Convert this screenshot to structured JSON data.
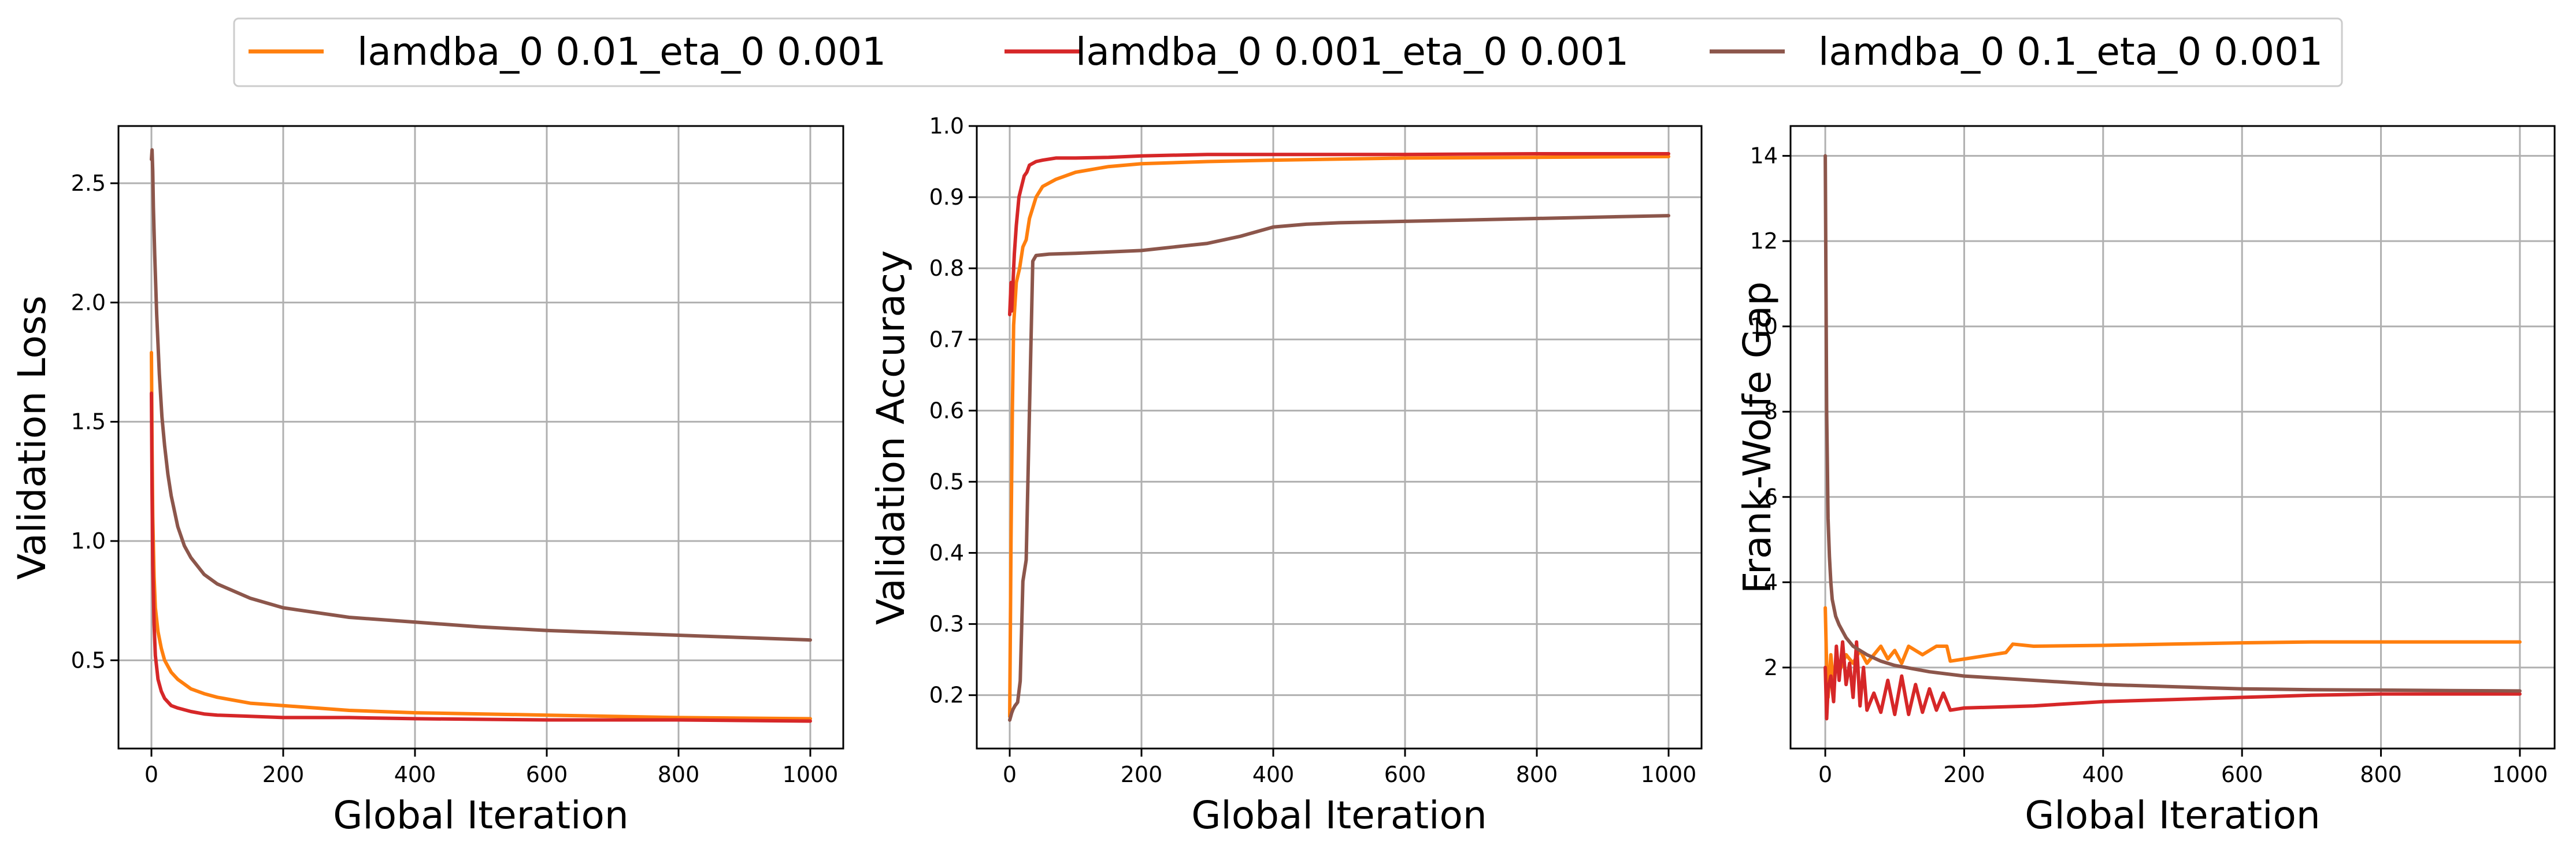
{
  "chart_data": [
    {
      "type": "line",
      "title": "",
      "xlabel": "Global Iteration",
      "ylabel": "Validation Loss",
      "xlim": [
        -50,
        1050
      ],
      "ylim": [
        0.13,
        2.74
      ],
      "xticks": [
        0,
        200,
        400,
        600,
        800,
        1000
      ],
      "yticks": [
        0.5,
        1.0,
        1.5,
        2.0,
        2.5
      ],
      "ytick_labels": [
        "0.5",
        "1.0",
        "1.5",
        "2.0",
        "2.5"
      ],
      "grid": true,
      "series": [
        {
          "name": "lamdba_0 0.01_eta_0 0.001",
          "color": "#ff7f0e",
          "x": [
            0,
            1,
            2,
            4,
            6,
            10,
            15,
            20,
            30,
            40,
            60,
            80,
            100,
            150,
            200,
            300,
            400,
            600,
            800,
            1000
          ],
          "y": [
            1.79,
            1.4,
            1.1,
            0.85,
            0.72,
            0.62,
            0.55,
            0.5,
            0.45,
            0.42,
            0.38,
            0.36,
            0.345,
            0.32,
            0.31,
            0.29,
            0.28,
            0.27,
            0.26,
            0.255
          ]
        },
        {
          "name": "lamdba_0 0.001_eta_0 0.001",
          "color": "#d62728",
          "x": [
            0,
            1,
            2,
            4,
            6,
            10,
            15,
            20,
            30,
            40,
            60,
            80,
            100,
            150,
            200,
            300,
            400,
            600,
            800,
            1000
          ],
          "y": [
            1.62,
            1.2,
            0.9,
            0.65,
            0.52,
            0.42,
            0.37,
            0.34,
            0.31,
            0.3,
            0.285,
            0.275,
            0.27,
            0.265,
            0.26,
            0.26,
            0.255,
            0.25,
            0.25,
            0.245
          ]
        },
        {
          "name": "lamdba_0 0.1_eta_0 0.001",
          "color": "#8c564b",
          "x": [
            0,
            1,
            2,
            3,
            5,
            8,
            12,
            16,
            20,
            25,
            30,
            40,
            50,
            60,
            80,
            100,
            150,
            200,
            300,
            400,
            500,
            600,
            700,
            800,
            900,
            1000
          ],
          "y": [
            2.6,
            2.64,
            2.55,
            2.4,
            2.2,
            1.95,
            1.7,
            1.52,
            1.4,
            1.28,
            1.19,
            1.06,
            0.98,
            0.93,
            0.86,
            0.82,
            0.76,
            0.72,
            0.68,
            0.66,
            0.64,
            0.625,
            0.615,
            0.605,
            0.595,
            0.585
          ]
        }
      ]
    },
    {
      "type": "line",
      "title": "",
      "xlabel": "Global Iteration",
      "ylabel": "Validation Accuracy",
      "xlim": [
        -50,
        1050
      ],
      "ylim": [
        0.125,
        1.0
      ],
      "xticks": [
        0,
        200,
        400,
        600,
        800,
        1000
      ],
      "yticks": [
        0.2,
        0.3,
        0.4,
        0.5,
        0.6,
        0.7,
        0.8,
        0.9,
        1.0
      ],
      "ytick_labels": [
        "0.2",
        "0.3",
        "0.4",
        "0.5",
        "0.6",
        "0.7",
        "0.8",
        "0.9",
        "1.0"
      ],
      "grid": true,
      "series": [
        {
          "name": "lamdba_0 0.01_eta_0 0.001",
          "color": "#ff7f0e",
          "x": [
            0,
            2,
            4,
            6,
            10,
            15,
            20,
            25,
            30,
            40,
            50,
            70,
            100,
            150,
            200,
            300,
            400,
            600,
            800,
            1000
          ],
          "y": [
            0.17,
            0.42,
            0.6,
            0.72,
            0.78,
            0.8,
            0.83,
            0.84,
            0.87,
            0.9,
            0.915,
            0.925,
            0.935,
            0.943,
            0.947,
            0.95,
            0.952,
            0.955,
            0.956,
            0.957
          ]
        },
        {
          "name": "lamdba_0 0.001_eta_0 0.001",
          "color": "#d62728",
          "x": [
            0,
            2,
            3,
            5,
            7,
            10,
            14,
            18,
            22,
            26,
            30,
            40,
            50,
            70,
            100,
            150,
            200,
            300,
            400,
            600,
            800,
            1000
          ],
          "y": [
            0.735,
            0.78,
            0.74,
            0.78,
            0.82,
            0.86,
            0.9,
            0.915,
            0.93,
            0.935,
            0.945,
            0.95,
            0.952,
            0.955,
            0.955,
            0.956,
            0.958,
            0.96,
            0.96,
            0.96,
            0.961,
            0.961
          ]
        },
        {
          "name": "lamdba_0 0.1_eta_0 0.001",
          "color": "#8c564b",
          "x": [
            0,
            3,
            5,
            8,
            12,
            16,
            20,
            25,
            30,
            35,
            40,
            60,
            100,
            150,
            200,
            250,
            300,
            350,
            400,
            450,
            500,
            600,
            700,
            800,
            900,
            1000
          ],
          "y": [
            0.165,
            0.175,
            0.18,
            0.185,
            0.19,
            0.22,
            0.36,
            0.39,
            0.6,
            0.81,
            0.818,
            0.82,
            0.821,
            0.823,
            0.825,
            0.83,
            0.835,
            0.845,
            0.858,
            0.862,
            0.864,
            0.866,
            0.868,
            0.87,
            0.872,
            0.874
          ]
        }
      ]
    },
    {
      "type": "line",
      "title": "",
      "xlabel": "Global Iteration",
      "ylabel": "Frank-Wolfe Gap",
      "xlim": [
        -50,
        1050
      ],
      "ylim": [
        0.1,
        14.7
      ],
      "xticks": [
        0,
        200,
        400,
        600,
        800,
        1000
      ],
      "yticks": [
        2,
        4,
        6,
        8,
        10,
        12,
        14
      ],
      "ytick_labels": [
        "2",
        "4",
        "6",
        "8",
        "10",
        "12",
        "14"
      ],
      "grid": true,
      "series": [
        {
          "name": "lamdba_0 0.01_eta_0 0.001",
          "color": "#ff7f0e",
          "x": [
            0,
            2,
            4,
            8,
            12,
            16,
            20,
            30,
            40,
            50,
            60,
            70,
            80,
            90,
            100,
            110,
            120,
            140,
            160,
            175,
            180,
            200,
            240,
            260,
            270,
            300,
            400,
            500,
            600,
            700,
            800,
            900,
            1000
          ],
          "y": [
            3.4,
            2.0,
            1.3,
            2.3,
            1.6,
            2.2,
            1.9,
            2.3,
            2.1,
            2.4,
            2.1,
            2.3,
            2.5,
            2.2,
            2.4,
            2.1,
            2.5,
            2.3,
            2.5,
            2.5,
            2.15,
            2.2,
            2.3,
            2.35,
            2.55,
            2.5,
            2.52,
            2.55,
            2.58,
            2.6,
            2.6,
            2.6,
            2.6
          ]
        },
        {
          "name": "lamdba_0 0.001_eta_0 0.001",
          "color": "#d62728",
          "x": [
            0,
            2,
            4,
            8,
            12,
            16,
            20,
            25,
            30,
            35,
            40,
            45,
            50,
            55,
            60,
            70,
            80,
            90,
            100,
            110,
            120,
            130,
            140,
            150,
            160,
            170,
            180,
            200,
            300,
            400,
            500,
            600,
            700,
            800,
            900,
            1000
          ],
          "y": [
            2.0,
            0.8,
            1.5,
            1.8,
            1.2,
            2.5,
            1.7,
            2.6,
            1.6,
            2.1,
            1.3,
            2.6,
            1.1,
            2.0,
            1.0,
            1.4,
            0.95,
            1.7,
            0.9,
            1.8,
            0.9,
            1.6,
            0.95,
            1.5,
            1.0,
            1.4,
            1.0,
            1.05,
            1.1,
            1.2,
            1.25,
            1.3,
            1.35,
            1.38,
            1.38,
            1.38
          ]
        },
        {
          "name": "lamdba_0 0.1_eta_0 0.001",
          "color": "#8c564b",
          "x": [
            0,
            1,
            2,
            3,
            4,
            6,
            8,
            10,
            15,
            20,
            30,
            40,
            60,
            80,
            100,
            150,
            200,
            300,
            400,
            500,
            600,
            700,
            800,
            900,
            1000
          ],
          "y": [
            14.0,
            11.0,
            8.0,
            6.8,
            5.5,
            4.6,
            4.0,
            3.6,
            3.2,
            3.0,
            2.7,
            2.5,
            2.3,
            2.15,
            2.05,
            1.9,
            1.8,
            1.7,
            1.6,
            1.55,
            1.5,
            1.48,
            1.47,
            1.46,
            1.45
          ]
        }
      ]
    }
  ],
  "legend": {
    "placement": "top-center",
    "entries": [
      "lamdba_0 0.01_eta_0 0.001",
      "lamdba_0 0.001_eta_0 0.001",
      "lamdba_0 0.1_eta_0 0.001"
    ],
    "colors": [
      "#ff7f0e",
      "#d62728",
      "#8c564b"
    ]
  }
}
